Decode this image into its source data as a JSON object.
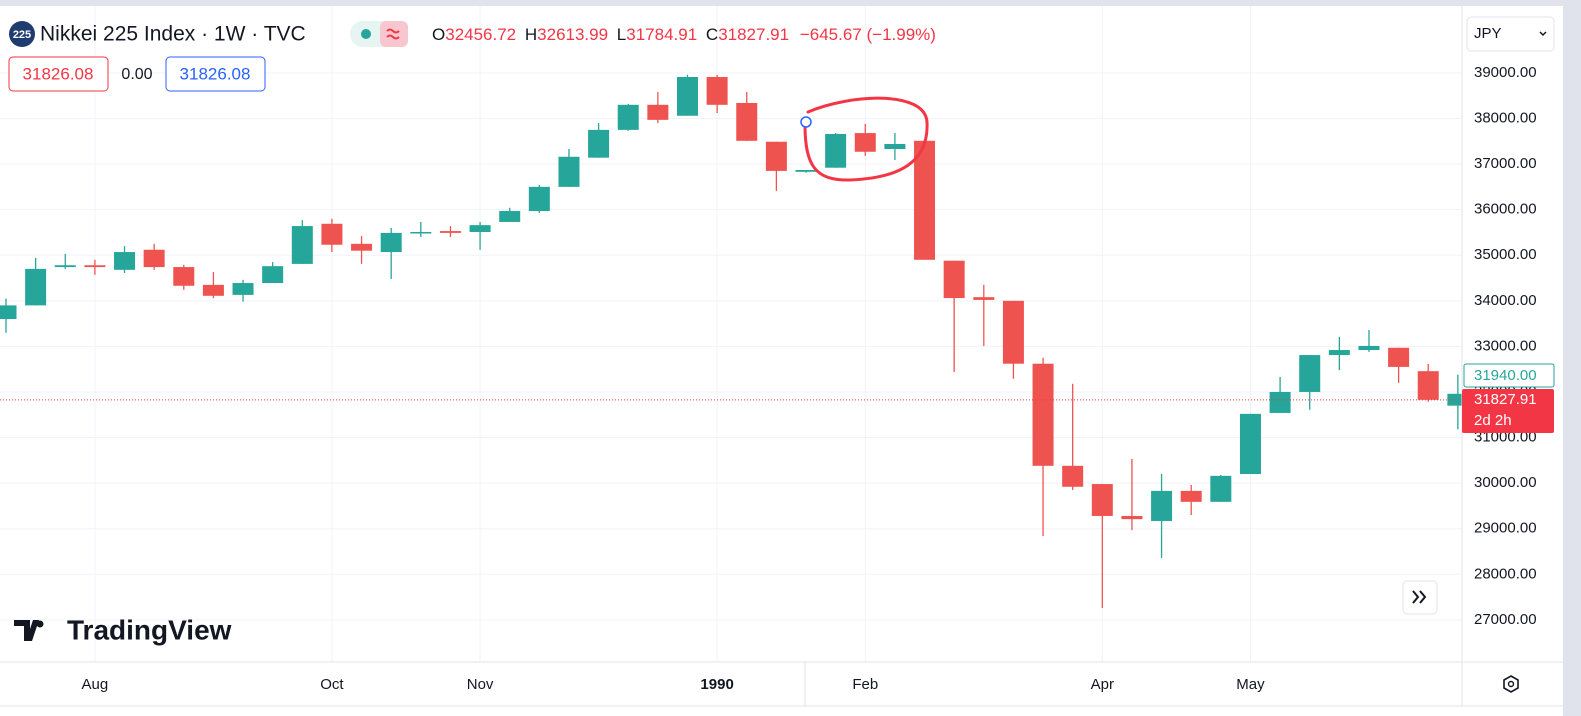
{
  "header": {
    "symbol_badge": "225",
    "title": "Nikkei 225 Index · 1W · TVC",
    "change": "−645.67 (−1.99%)",
    "o": "O",
    "h": "H",
    "l": "L",
    "c": "C",
    "bid": 31826.08,
    "spread": "0.00",
    "ask": 31826.08,
    "currency": "JPY",
    "indicator_price": "31940.00",
    "countdown": "2d 2h",
    "logo": "TradingView"
  },
  "chart_data": {
    "type": "candlestick",
    "title": "Nikkei 225 Index",
    "up_color": "#26a69a",
    "down_color": "#ef5350",
    "grid": true,
    "categories": [
      null,
      null,
      null,
      "Aug",
      null,
      null,
      null,
      null,
      null,
      null,
      null,
      "Oct",
      null,
      null,
      null,
      null,
      "Nov",
      null,
      null,
      null,
      null,
      null,
      null,
      null,
      "1990",
      null,
      null,
      null,
      null,
      "Feb",
      null,
      null,
      null,
      null,
      null,
      null,
      null,
      "Apr",
      null,
      null,
      null,
      null,
      "May",
      null,
      null,
      null,
      null,
      null,
      null,
      null
    ],
    "open": [
      33600,
      33900,
      34740,
      34780,
      34680,
      35120,
      34740,
      34350,
      34130,
      34390,
      34810,
      35690,
      35250,
      35070,
      35490,
      35530,
      35510,
      35730,
      35970,
      36500,
      37140,
      37750,
      38300,
      38060,
      38910,
      38340,
      37490,
      36830,
      36920,
      37680,
      37330,
      37510,
      34880,
      34080,
      34000,
      32620,
      30380,
      29980,
      29280,
      29170,
      29830,
      29590,
      30200,
      31540,
      32000,
      32810,
      32920,
      32970,
      32456.72,
      31700
    ],
    "high": [
      34050,
      34940,
      35030,
      34900,
      35200,
      35250,
      34790,
      34630,
      34460,
      34850,
      35770,
      35800,
      35420,
      35600,
      35730,
      35640,
      35730,
      36040,
      36540,
      37330,
      37900,
      38320,
      38580,
      38960,
      38960,
      38580,
      37490,
      36870,
      37680,
      37880,
      37680,
      37510,
      34880,
      34350,
      34000,
      32750,
      32180,
      29980,
      30530,
      30200,
      29960,
      30180,
      31520,
      32330,
      32810,
      33210,
      33360,
      32970,
      32613.99,
      32380
    ],
    "low": [
      33300,
      33900,
      34700,
      34570,
      34610,
      34680,
      34240,
      34060,
      33980,
      34390,
      34810,
      35070,
      34810,
      34480,
      35400,
      35400,
      35120,
      35730,
      35930,
      36500,
      37140,
      37730,
      37900,
      38060,
      38120,
      37510,
      36410,
      36810,
      36920,
      37180,
      37090,
      34900,
      32440,
      33010,
      32290,
      28840,
      29850,
      27260,
      28970,
      28360,
      29300,
      29590,
      30200,
      31540,
      31610,
      32480,
      32880,
      32200,
      31784.91,
      31180
    ],
    "close": [
      33900,
      34700,
      34780,
      34740,
      35070,
      34740,
      34330,
      34110,
      34390,
      34760,
      35640,
      35230,
      35100,
      35490,
      35510,
      35490,
      35660,
      35970,
      36500,
      37160,
      37750,
      38300,
      37970,
      38910,
      38300,
      37510,
      36850,
      36870,
      37660,
      37270,
      37440,
      34900,
      34060,
      34020,
      32620,
      30380,
      29920,
      29280,
      29210,
      29830,
      29590,
      30160,
      31520,
      32000,
      32810,
      32920,
      33010,
      32550,
      31827.91,
      31960
    ],
    "ylim": [
      26120,
      40380
    ],
    "yticks": [
      {
        "value": 27000,
        "label": "27000.00"
      },
      {
        "value": 28000,
        "label": "28000.00"
      },
      {
        "value": 29000,
        "label": "29000.00"
      },
      {
        "value": 30000,
        "label": "30000.00"
      },
      {
        "value": 31000,
        "label": "31000.00"
      },
      {
        "value": 32000,
        "label": "32000.00"
      },
      {
        "value": 33000,
        "label": "33000.00"
      },
      {
        "value": 34000,
        "label": "34000.00"
      },
      {
        "value": 35000,
        "label": "35000.00"
      },
      {
        "value": 36000,
        "label": "36000.00"
      },
      {
        "value": 37000,
        "label": "37000.00"
      },
      {
        "value": 38000,
        "label": "38000.00"
      },
      {
        "value": 39000,
        "label": "39000.00"
      }
    ]
  }
}
